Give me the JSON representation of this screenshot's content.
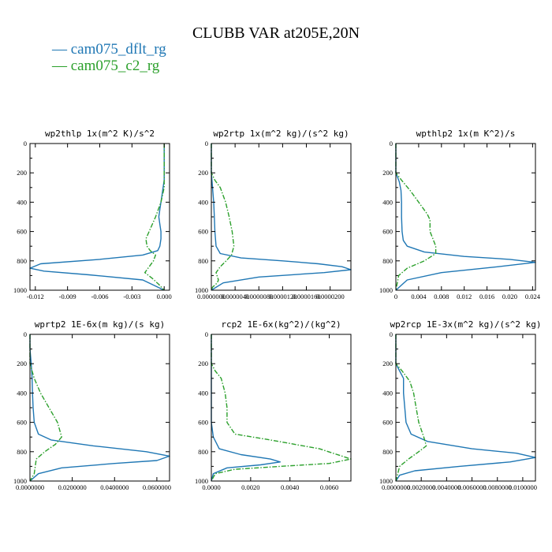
{
  "chart_data": {
    "type": "line",
    "title": "CLUBB VAR at205E,20N",
    "legend": [
      {
        "name": "cam075_dflt_rg",
        "color": "#1f77b4",
        "dash": "solid"
      },
      {
        "name": "cam075_c2_rg",
        "color": "#2ca02c",
        "dash": "dashdot"
      }
    ],
    "panels": [
      {
        "title": "wp2thlp  1x(m^2 K)/s^2",
        "xlim": [
          -0.0125,
          0.0005
        ],
        "ylim": [
          0,
          1000
        ],
        "xticks": [
          -0.012,
          -0.009,
          -0.006,
          -0.003,
          0.0
        ],
        "xtick_labels": [
          "-0.012",
          "-0.009",
          "-0.006",
          "-0.003",
          "0.000"
        ],
        "yticks": [
          0,
          200,
          400,
          600,
          800,
          1000
        ],
        "ytick_labels": [
          "0",
          "200",
          "400",
          "600",
          "800",
          "1000"
        ],
        "series": [
          {
            "name": "cam075_dflt_rg",
            "x": [
              0,
              0,
              0,
              0,
              -0.0001,
              -0.0002,
              -0.0003,
              -0.0004,
              -0.0005,
              -0.0004,
              -0.0003,
              -0.0003,
              -0.0004,
              -0.0006,
              -0.002,
              -0.006,
              -0.0115,
              -0.0125,
              -0.0112,
              -0.007,
              -0.002,
              0
            ],
            "y": [
              0,
              100,
              200,
              250,
              300,
              350,
              400,
              450,
              500,
              550,
              600,
              650,
              700,
              730,
              760,
              790,
              820,
              850,
              870,
              895,
              930,
              1000
            ]
          },
          {
            "name": "cam075_c2_rg",
            "x": [
              0,
              0,
              0,
              0,
              -0.0003,
              -0.0008,
              -0.0014,
              -0.0017,
              -0.0016,
              -0.0013,
              -0.0008,
              -0.001,
              -0.0015,
              -0.0018,
              -0.0011,
              -0.0005,
              0
            ],
            "y": [
              0,
              100,
              200,
              300,
              400,
              500,
              600,
              650,
              700,
              730,
              760,
              800,
              850,
              880,
              920,
              960,
              1000
            ]
          }
        ]
      },
      {
        "title": "wp2rtp  1x(m^2 kg)/(s^2 kg)",
        "xlim": [
          0,
          2.35e-05
        ],
        "ylim": [
          0,
          1000
        ],
        "xticks": [
          0,
          4e-06,
          8e-06,
          1.2e-05,
          1.6e-05,
          2e-05
        ],
        "xtick_labels": [
          "0.0000000",
          "0.0000040",
          "0.0000080",
          "0.0000120",
          "0.0000160",
          "0.0000200"
        ],
        "yticks": [
          0,
          200,
          400,
          600,
          800,
          1000
        ],
        "ytick_labels": [
          "0",
          "200",
          "400",
          "600",
          "800",
          "1000"
        ],
        "series": [
          {
            "name": "cam075_dflt_rg",
            "x": [
              0,
              0,
              0,
              2e-07,
              4e-07,
              5e-07,
              6e-07,
              8e-07,
              1.5e-06,
              5e-06,
              1.2e-05,
              1.8e-05,
              2.2e-05,
              2.35e-05,
              1.9e-05,
              8e-06,
              2e-06,
              0
            ],
            "y": [
              0,
              100,
              200,
              300,
              400,
              500,
              600,
              700,
              750,
              780,
              800,
              820,
              840,
              860,
              880,
              910,
              950,
              1000
            ]
          },
          {
            "name": "cam075_c2_rg",
            "x": [
              0,
              0,
              6e-07,
              1.5e-06,
              2.4e-06,
              3e-06,
              3.5e-06,
              3.8e-06,
              3.4e-06,
              2.5e-06,
              1.5e-06,
              8e-07,
              1.2e-06,
              1e-06,
              2e-07,
              0
            ],
            "y": [
              0,
              200,
              250,
              300,
              400,
              500,
              600,
              700,
              760,
              800,
              840,
              880,
              930,
              950,
              980,
              1000
            ]
          }
        ]
      },
      {
        "title": "wpthlp2  1x(m K^2)/s",
        "xlim": [
          0,
          0.0245
        ],
        "ylim": [
          0,
          1000
        ],
        "xticks": [
          0,
          0.004,
          0.008,
          0.012,
          0.016,
          0.02,
          0.024
        ],
        "xtick_labels": [
          "0",
          "0.004",
          "0.008",
          "0.012",
          "0.016",
          "0.020",
          "0.024"
        ],
        "yticks": [
          0,
          200,
          400,
          600,
          800,
          1000
        ],
        "ytick_labels": [
          "0",
          "200",
          "400",
          "600",
          "800",
          "1000"
        ],
        "series": [
          {
            "name": "cam075_dflt_rg",
            "x": [
              0,
              0,
              0,
              0.0006,
              0.0009,
              0.001,
              0.001,
              0.0011,
              0.0013,
              0.002,
              0.005,
              0.012,
              0.02,
              0.0245,
              0.018,
              0.008,
              0.002,
              0
            ],
            "y": [
              0,
              100,
              200,
              260,
              320,
              400,
              500,
              600,
              660,
              700,
              740,
              770,
              790,
              810,
              840,
              880,
              930,
              1000
            ]
          },
          {
            "name": "cam075_c2_rg",
            "x": [
              0,
              0,
              0.001,
              0.0025,
              0.004,
              0.0055,
              0.006,
              0.006,
              0.0065,
              0.007,
              0.007,
              0.005,
              0.002,
              0.0005,
              0
            ],
            "y": [
              0,
              200,
              250,
              320,
              400,
              480,
              520,
              600,
              650,
              700,
              750,
              800,
              850,
              900,
              1000
            ]
          }
        ]
      },
      {
        "title": "wprtp2  1E-6x(m kg)/(s kg)",
        "xlim": [
          0,
          0.066
        ],
        "ylim": [
          0,
          1000
        ],
        "xticks": [
          0,
          0.02,
          0.04,
          0.06
        ],
        "xtick_labels": [
          "0.0000000",
          "0.0200000",
          "0.0400000",
          "0.0600000"
        ],
        "yticks": [
          0,
          200,
          400,
          600,
          800,
          1000
        ],
        "ytick_labels": [
          "0",
          "200",
          "400",
          "600",
          "800",
          "1000"
        ],
        "series": [
          {
            "name": "cam075_dflt_rg",
            "x": [
              0,
              0,
              0.0006,
              0.001,
              0.0012,
              0.0015,
              0.002,
              0.004,
              0.01,
              0.03,
              0.055,
              0.066,
              0.06,
              0.04,
              0.015,
              0.004,
              0
            ],
            "y": [
              0,
              100,
              200,
              300,
              400,
              500,
              600,
              680,
              720,
              760,
              800,
              830,
              860,
              880,
              910,
              950,
              1000
            ]
          },
          {
            "name": "cam075_c2_rg",
            "x": [
              0,
              0,
              0.002,
              0.005,
              0.009,
              0.013,
              0.015,
              0.012,
              0.007,
              0.003,
              0.0025,
              0.002,
              0
            ],
            "y": [
              0,
              200,
              300,
              400,
              500,
              600,
              700,
              750,
              800,
              850,
              900,
              950,
              1000
            ]
          }
        ]
      },
      {
        "title": "rcp2  1E-6x(kg^2)/(kg^2)",
        "xlim": [
          0,
          0.0071
        ],
        "ylim": [
          0,
          1000
        ],
        "xticks": [
          0,
          0.002,
          0.004,
          0.006
        ],
        "xtick_labels": [
          "0.0000",
          "0.0020",
          "0.0040",
          "0.0060"
        ],
        "yticks": [
          0,
          200,
          400,
          600,
          800,
          1000
        ],
        "ytick_labels": [
          "0",
          "200",
          "400",
          "600",
          "800",
          "1000"
        ],
        "series": [
          {
            "name": "cam075_dflt_rg",
            "x": [
              0,
              0,
              0,
              0,
              0.0001,
              0.0004,
              0.0015,
              0.003,
              0.0035,
              0.0025,
              0.0008,
              0.0001,
              0
            ],
            "y": [
              0,
              200,
              400,
              600,
              700,
              780,
              820,
              850,
              870,
              890,
              910,
              950,
              1000
            ]
          },
          {
            "name": "cam075_c2_rg",
            "x": [
              0,
              0,
              0.0002,
              0.0005,
              0.0007,
              0.0008,
              0.0008,
              0.0012,
              0.003,
              0.0055,
              0.0071,
              0.006,
              0.0035,
              0.0012,
              0.0002,
              0
            ],
            "y": [
              0,
              200,
              250,
              300,
              400,
              500,
              600,
              680,
              720,
              780,
              850,
              880,
              900,
              920,
              950,
              1000
            ]
          }
        ]
      },
      {
        "title": "wp2rcp  1E-3x(m^2 kg)/(s^2 kg)",
        "xlim": [
          0,
          0.011
        ],
        "ylim": [
          0,
          1000
        ],
        "xticks": [
          0,
          0.002,
          0.004,
          0.006,
          0.008,
          0.01
        ],
        "xtick_labels": [
          "0.0000000",
          "0.0020000",
          "0.0040000",
          "0.0060000",
          "0.0080000",
          "0.0100000"
        ],
        "yticks": [
          0,
          200,
          400,
          600,
          800,
          1000
        ],
        "ytick_labels": [
          "0",
          "200",
          "400",
          "600",
          "800",
          "1000"
        ],
        "series": [
          {
            "name": "cam075_dflt_rg",
            "x": [
              0,
              0,
              0.0003,
              0.0006,
              0.0006,
              0.0007,
              0.0008,
              0.0012,
              0.0025,
              0.006,
              0.0095,
              0.011,
              0.009,
              0.005,
              0.0015,
              0.0003,
              0
            ],
            "y": [
              0,
              200,
              250,
              300,
              400,
              500,
              600,
              680,
              730,
              780,
              810,
              840,
              870,
              900,
              930,
              960,
              1000
            ]
          },
          {
            "name": "cam075_c2_rg",
            "x": [
              0,
              0,
              0.0005,
              0.0011,
              0.0014,
              0.0016,
              0.0018,
              0.0022,
              0.0024,
              0.0018,
              0.001,
              0.0003,
              0
            ],
            "y": [
              0,
              200,
              250,
              320,
              400,
              500,
              600,
              700,
              760,
              800,
              850,
              900,
              1000
            ]
          }
        ]
      }
    ]
  }
}
